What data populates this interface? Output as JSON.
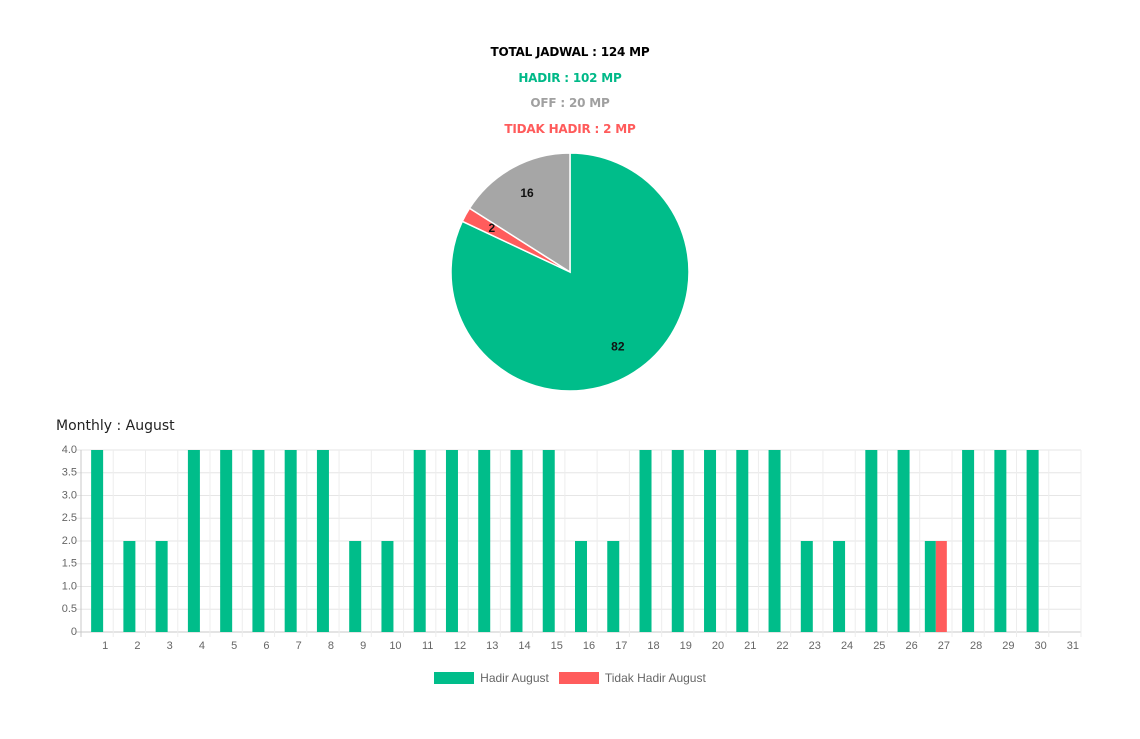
{
  "summary": {
    "total": {
      "text": "TOTAL JADWAL : 124 MP",
      "color": "#000000"
    },
    "hadir": {
      "text": "HADIR : 102 MP",
      "color": "#00b988"
    },
    "off": {
      "text": "OFF : 20 MP",
      "color": "#a0a0a0"
    },
    "tidak_hadir": {
      "text": "TIDAK HADIR : 2 MP",
      "color": "#ff5b5b"
    }
  },
  "monthly_title": "Monthly : August",
  "colors": {
    "hadir": "#00bd8a",
    "tidak_hadir": "#ff5c5c",
    "off": "#a6a6a6"
  },
  "chart_data": [
    {
      "type": "pie",
      "categories": [
        "Hadir",
        "Tidak Hadir",
        "Off"
      ],
      "values": [
        82,
        2,
        16
      ],
      "labels": [
        "82",
        "2",
        "16"
      ],
      "colors": [
        "#00bd8a",
        "#ff5c5c",
        "#a6a6a6"
      ]
    },
    {
      "type": "bar",
      "categories": [
        "1",
        "2",
        "3",
        "4",
        "5",
        "6",
        "7",
        "8",
        "9",
        "10",
        "11",
        "12",
        "13",
        "14",
        "15",
        "16",
        "17",
        "18",
        "19",
        "20",
        "21",
        "22",
        "23",
        "24",
        "25",
        "26",
        "27",
        "28",
        "29",
        "30",
        "31"
      ],
      "series": [
        {
          "name": "Hadir August",
          "color": "#00bd8a",
          "values": [
            4,
            2,
            2,
            4,
            4,
            4,
            4,
            4,
            2,
            2,
            4,
            4,
            4,
            4,
            4,
            2,
            2,
            4,
            4,
            4,
            4,
            4,
            2,
            2,
            4,
            4,
            2,
            4,
            4,
            4,
            0
          ]
        },
        {
          "name": "Tidak Hadir August",
          "color": "#ff5c5c",
          "values": [
            0,
            0,
            0,
            0,
            0,
            0,
            0,
            0,
            0,
            0,
            0,
            0,
            0,
            0,
            0,
            0,
            0,
            0,
            0,
            0,
            0,
            0,
            0,
            0,
            0,
            0,
            2,
            0,
            0,
            0,
            0
          ]
        }
      ],
      "yticks": [
        "4.0",
        "3.5",
        "3.0",
        "2.5",
        "2.0",
        "1.5",
        "1.0",
        "0.5",
        "0"
      ],
      "ylim": [
        0,
        4
      ],
      "grid": true,
      "legend": "bottom"
    }
  ]
}
